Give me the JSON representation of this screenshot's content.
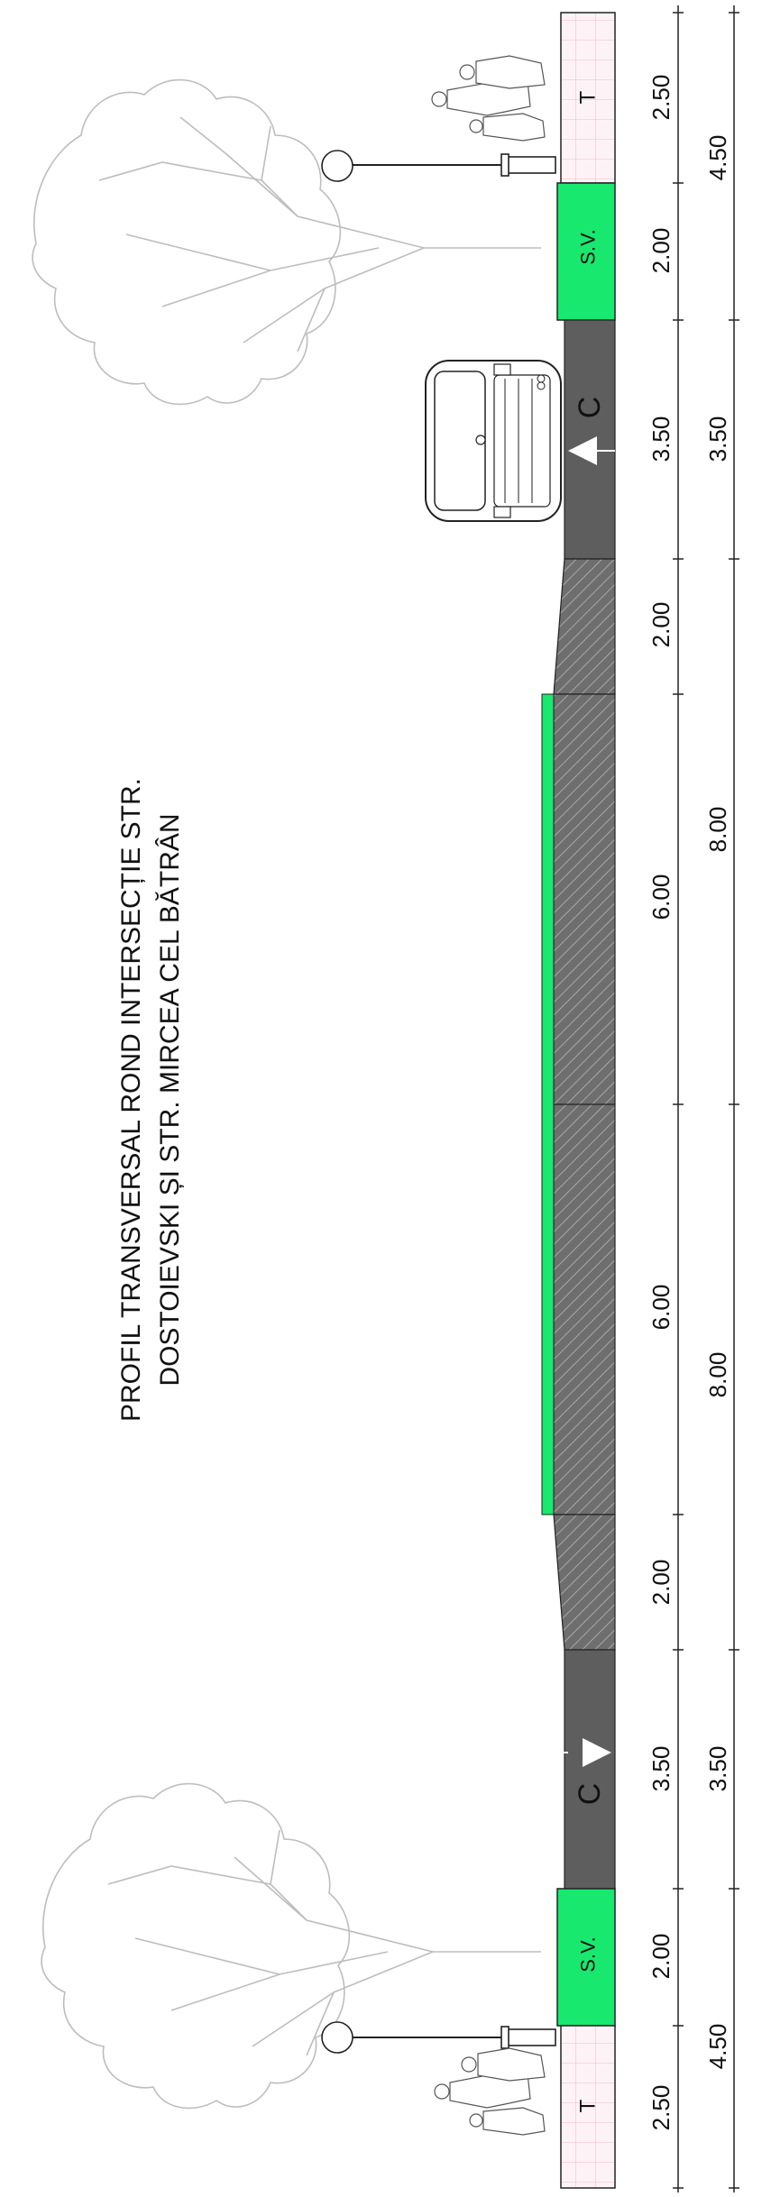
{
  "title": {
    "line1": "PROFIL TRANSVERSAL ROND INTERSECȚIE STR.",
    "line2": "DOSTOIEVSKI ȘI STR. MIRCEA CEL BĂTRÂN"
  },
  "zones": {
    "sidewalk_top": "T",
    "green_strip_top": "S.V.",
    "lane_top": "C",
    "lane_bottom": "C",
    "green_strip_bottom": "S.V.",
    "sidewalk_bottom": "T"
  },
  "dimensions_inner": [
    "2.50",
    "2.00",
    "3.50",
    "2.00",
    "6.00",
    "6.00",
    "2.00",
    "3.50",
    "2.00",
    "2.50"
  ],
  "dimensions_outer": [
    "4.50",
    "3.50",
    "8.00",
    "8.00",
    "3.50",
    "4.50"
  ],
  "colors": {
    "green": "#18e86e",
    "asphalt": "#5e5e5e",
    "hatch_bg": "#6e6e6e",
    "sidewalk": "#fdf2f5",
    "tree": "#bdbdbd"
  },
  "icons": [
    "tree-icon",
    "street-lamp-icon",
    "car-icon",
    "pedestrians-icon",
    "direction-arrow-icon"
  ]
}
